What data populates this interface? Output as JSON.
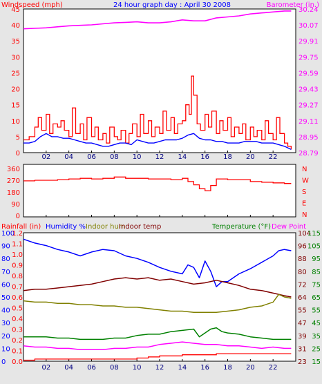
{
  "title": "24 hour graph day : April 30 2008",
  "x_ticks": [
    "02",
    "04",
    "06",
    "08",
    "10",
    "12",
    "14",
    "16",
    "18",
    "20",
    "22"
  ],
  "colors": {
    "red": "#ff0000",
    "blue": "#0000ff",
    "magenta": "#ff00ff",
    "olive": "#808000",
    "maroon": "#800000",
    "green": "#008000",
    "dark_red": "#e00000"
  },
  "chart_data": [
    {
      "type": "line",
      "panel": "wind-barometer",
      "label_left": "Windspeed (mph)",
      "label_right": "Barometer (in.)",
      "xlim": [
        0,
        24
      ],
      "ylim_left": [
        0,
        45
      ],
      "ylim_right": [
        28.79,
        30.24
      ],
      "yticks_left": [
        "0",
        "5",
        "10",
        "15",
        "20",
        "25",
        "30",
        "35",
        "40",
        "45"
      ],
      "yticks_right": [
        "28.79",
        "28.95",
        "29.11",
        "29.27",
        "29.43",
        "29.59",
        "29.75",
        "29.91",
        "30.07",
        "30.24"
      ],
      "series": [
        {
          "name": "Barometer (in.)",
          "axis": "right",
          "color": "#ff00ff",
          "x": [
            0,
            1,
            2,
            3,
            4,
            5,
            6,
            7,
            8,
            9,
            10,
            11,
            12,
            13,
            14,
            15,
            16,
            17,
            18,
            19,
            20,
            21,
            22,
            23,
            23.6
          ],
          "y": [
            30.04,
            30.045,
            30.05,
            30.06,
            30.07,
            30.075,
            30.08,
            30.09,
            30.1,
            30.105,
            30.11,
            30.1,
            30.1,
            30.11,
            30.13,
            30.12,
            30.12,
            30.15,
            30.16,
            30.17,
            30.19,
            30.2,
            30.21,
            30.22,
            30.22
          ]
        },
        {
          "name": "Wind speed",
          "axis": "left",
          "color": "#0000ff",
          "x": [
            0,
            0.5,
            1,
            1.5,
            2,
            2.5,
            3,
            3.5,
            4,
            4.5,
            5,
            5.5,
            6,
            6.5,
            7,
            7.5,
            8,
            8.5,
            9,
            9.5,
            10,
            10.5,
            11,
            11.5,
            12,
            12.5,
            13,
            13.5,
            14,
            14.5,
            15,
            15.5,
            16,
            16.5,
            17,
            17.5,
            18,
            18.5,
            19,
            19.5,
            20,
            20.5,
            21,
            21.5,
            22,
            22.5,
            23,
            23.6
          ],
          "y": [
            3,
            3,
            3.5,
            5,
            6,
            5,
            5,
            4.5,
            4.5,
            4,
            3.5,
            3,
            3,
            2.5,
            2,
            2,
            2.5,
            3,
            3,
            2.5,
            4,
            3.5,
            3,
            3,
            3.5,
            4,
            4,
            4,
            4.5,
            5.5,
            6,
            4.5,
            4,
            4,
            3.5,
            3.5,
            3,
            3,
            3,
            3.5,
            3.5,
            3.5,
            3,
            3,
            3,
            2.5,
            2,
            1
          ]
        },
        {
          "name": "Wind gust",
          "axis": "left",
          "color": "#ff0000",
          "x": [
            0,
            0.5,
            1,
            1.3,
            1.6,
            2,
            2.3,
            2.6,
            3,
            3.3,
            3.6,
            4,
            4.3,
            4.6,
            5,
            5.3,
            5.6,
            6,
            6.3,
            6.6,
            7,
            7.3,
            7.6,
            8,
            8.3,
            8.6,
            9,
            9.3,
            9.6,
            10,
            10.3,
            10.6,
            11,
            11.3,
            11.6,
            12,
            12.3,
            12.6,
            13,
            13.3,
            13.6,
            14,
            14.3,
            14.6,
            14.8,
            15,
            15.3,
            15.6,
            16,
            16.3,
            16.6,
            17,
            17.3,
            17.6,
            18,
            18.3,
            18.6,
            19,
            19.3,
            19.6,
            20,
            20.3,
            20.6,
            21,
            21.3,
            21.6,
            22,
            22.3,
            22.6,
            23,
            23.3,
            23.6
          ],
          "y": [
            4,
            5,
            8,
            11,
            7,
            12,
            6,
            9,
            8,
            10,
            7,
            5,
            14,
            6,
            9,
            4,
            11,
            5,
            8,
            4,
            6,
            3,
            8,
            5,
            4,
            7,
            3,
            6,
            9,
            5,
            12,
            6,
            10,
            5,
            8,
            6,
            13,
            7,
            11,
            6,
            9,
            10,
            15,
            12,
            24,
            18,
            9,
            7,
            12,
            8,
            13,
            6,
            10,
            7,
            11,
            5,
            8,
            6,
            9,
            4,
            8,
            5,
            7,
            4,
            10,
            6,
            4,
            11,
            6,
            3,
            2,
            1
          ]
        }
      ]
    },
    {
      "type": "line",
      "panel": "wind-direction",
      "xlim": [
        0,
        24
      ],
      "ylim_left": [
        0,
        360
      ],
      "yticks_left": [
        "0",
        "90",
        "180",
        "270",
        "360"
      ],
      "yticks_right": [
        "N",
        "E",
        "S",
        "W",
        "N"
      ],
      "series": [
        {
          "name": "Wind direction",
          "axis": "left",
          "color": "#ff0000",
          "x": [
            0,
            1,
            2,
            3,
            4,
            5,
            6,
            7,
            8,
            9,
            10,
            11,
            12,
            13,
            14,
            14.5,
            15,
            15.5,
            16,
            16.5,
            17,
            18,
            19,
            20,
            21,
            22,
            23,
            23.6
          ],
          "y": [
            265,
            270,
            270,
            275,
            280,
            285,
            280,
            285,
            295,
            285,
            285,
            280,
            280,
            275,
            285,
            260,
            235,
            205,
            190,
            230,
            280,
            275,
            275,
            260,
            255,
            250,
            245,
            245
          ]
        }
      ]
    },
    {
      "type": "line",
      "panel": "rain-humidity-temperature",
      "label_rain": "Rainfall (in)",
      "label_humidity": "Humidity %",
      "label_indoor_hum": "Indoor hum",
      "label_indoor_temp": "Indoor temp",
      "label_temperature": "Temperature (°F)",
      "label_dew_point": "Dew Point",
      "xlim": [
        0,
        24
      ],
      "ylim_humidity": [
        0,
        100
      ],
      "ylim_rain": [
        0,
        1.2
      ],
      "ylim_temp": [
        15,
        115
      ],
      "yticks_humidity": [
        "0",
        "10",
        "20",
        "30",
        "40",
        "50",
        "60",
        "70",
        "80",
        "90",
        "100"
      ],
      "yticks_rain": [
        "0.0",
        "0.1",
        "0.2",
        "0.3",
        "0.4",
        "0.5",
        "0.6",
        "0.7",
        "0.8",
        "0.9",
        "1.0",
        "1.1",
        "1.2"
      ],
      "yticks_temp_outer": [
        "15",
        "25",
        "35",
        "45",
        "55",
        "65",
        "75",
        "85",
        "95",
        "105",
        "115"
      ],
      "yticks_temp_inner": [
        "23",
        "31",
        "39",
        "47",
        "55",
        "64",
        "72",
        "80",
        "88",
        "96",
        "104"
      ],
      "series": [
        {
          "name": "Humidity %",
          "axis": "humidity",
          "color": "#0000ff",
          "x": [
            0,
            1,
            2,
            3,
            4,
            5,
            6,
            7,
            8,
            9,
            10,
            11,
            12,
            13,
            14,
            14.5,
            15,
            15.5,
            16,
            16.5,
            17,
            17.5,
            18,
            19,
            20,
            21,
            22,
            22.5,
            23,
            23.6
          ],
          "y": [
            95,
            92,
            90,
            87,
            85,
            82,
            85,
            87,
            86,
            82,
            80,
            77,
            73,
            70,
            68,
            75,
            73,
            65,
            78,
            70,
            58,
            62,
            62,
            68,
            72,
            77,
            82,
            86,
            87,
            86
          ]
        },
        {
          "name": "Indoor temp",
          "axis": "temp",
          "color": "#800000",
          "x": [
            0,
            1,
            2,
            3,
            4,
            5,
            6,
            7,
            8,
            9,
            10,
            11,
            12,
            13,
            14,
            15,
            16,
            17,
            18,
            19,
            20,
            21,
            22,
            23,
            23.6
          ],
          "y": [
            70,
            71,
            71,
            72,
            73,
            74,
            75,
            77,
            79,
            80,
            79,
            80,
            78,
            79,
            77,
            75,
            76,
            78,
            76,
            74,
            71,
            70,
            68,
            66,
            65
          ]
        },
        {
          "name": "Indoor hum",
          "axis": "humidity",
          "color": "#808000",
          "x": [
            0,
            1,
            2,
            3,
            4,
            5,
            6,
            7,
            8,
            9,
            10,
            11,
            12,
            13,
            14,
            15,
            16,
            17,
            18,
            19,
            20,
            21,
            22,
            22.5,
            23,
            23.6
          ],
          "y": [
            47,
            46,
            46,
            45,
            45,
            44,
            44,
            43,
            43,
            42,
            42,
            41,
            40,
            39,
            39,
            38,
            38,
            38,
            39,
            40,
            42,
            43,
            46,
            52,
            50,
            49
          ]
        },
        {
          "name": "Temperature (°F)",
          "axis": "temp",
          "color": "#008000",
          "x": [
            0,
            1,
            2,
            3,
            4,
            5,
            6,
            7,
            8,
            9,
            10,
            11,
            12,
            13,
            14,
            15,
            15.5,
            16,
            16.5,
            17,
            17.5,
            18,
            19,
            20,
            21,
            22,
            23,
            23.6
          ],
          "y": [
            34,
            34,
            34,
            33,
            33,
            32,
            32,
            32,
            33,
            33,
            35,
            36,
            36,
            38,
            39,
            40,
            34,
            37,
            40,
            41,
            38,
            37,
            36,
            34,
            33,
            32,
            32,
            32
          ]
        },
        {
          "name": "Dew Point",
          "axis": "temp",
          "color": "#ff00ff",
          "x": [
            0,
            1,
            2,
            3,
            4,
            5,
            6,
            7,
            8,
            9,
            10,
            11,
            12,
            13,
            14,
            15,
            16,
            17,
            18,
            19,
            20,
            21,
            22,
            23,
            23.6
          ],
          "y": [
            27,
            26,
            26,
            25,
            25,
            24,
            24,
            24,
            25,
            25,
            26,
            26,
            28,
            29,
            30,
            29,
            28,
            28,
            27,
            27,
            26,
            25,
            26,
            25,
            25
          ]
        },
        {
          "name": "Rainfall (in)",
          "axis": "rain",
          "color": "#ff0000",
          "x": [
            0,
            1,
            2,
            3,
            4,
            5,
            6,
            7,
            8,
            9,
            10,
            11,
            12,
            13,
            14,
            15,
            16,
            17,
            18,
            19,
            20,
            21,
            22,
            23,
            23.6
          ],
          "y": [
            0.01,
            0.02,
            0.02,
            0.02,
            0.02,
            0.02,
            0.02,
            0.02,
            0.02,
            0.02,
            0.03,
            0.04,
            0.05,
            0.05,
            0.06,
            0.06,
            0.06,
            0.07,
            0.07,
            0.07,
            0.07,
            0.07,
            0.07,
            0.07,
            0.07
          ]
        }
      ]
    }
  ]
}
